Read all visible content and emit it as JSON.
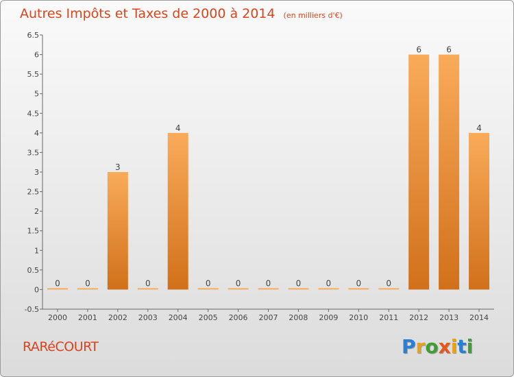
{
  "header": {
    "title": "Autres Impôts et Taxes de 2000 à 2014",
    "unit": "(en milliers d'€)"
  },
  "footer": {
    "place": "RARéCOURT",
    "logo_letters": [
      "P",
      "r",
      "o",
      "x",
      "i",
      "t",
      "i"
    ],
    "logo_colors": [
      "#2a7fd4",
      "#e8a21a",
      "#3f9e36",
      "#e8561a",
      "#e8a21a",
      "#2a7fd4",
      "#3f9e36"
    ]
  },
  "colors": {
    "bar_light": "#f9ab5a",
    "bar_dark": "#d1701a",
    "title": "#d9441c",
    "axis": "#666666"
  },
  "chart_data": {
    "type": "bar",
    "title": "Autres Impôts et Taxes de 2000 à 2014",
    "subtitle": "(en milliers d'€)",
    "categories": [
      "2000",
      "2001",
      "2002",
      "2003",
      "2004",
      "2005",
      "2006",
      "2007",
      "2008",
      "2009",
      "2010",
      "2011",
      "2012",
      "2013",
      "2014"
    ],
    "values": [
      0,
      0,
      3,
      0,
      4,
      0,
      0,
      0,
      0,
      0,
      0,
      0,
      6,
      6,
      4
    ],
    "data_labels": [
      "0",
      "0",
      "3",
      "0",
      "4",
      "0",
      "0",
      "0",
      "0",
      "0",
      "0",
      "0",
      "6",
      "6",
      "4"
    ],
    "yticks": [
      "-0.5",
      "0",
      "0.5",
      "1",
      "1.5",
      "2",
      "2.5",
      "3",
      "3.5",
      "4",
      "4.5",
      "5",
      "5.5",
      "6",
      "6.5"
    ],
    "ytick_values": [
      -0.5,
      0,
      0.5,
      1,
      1.5,
      2,
      2.5,
      3,
      3.5,
      4,
      4.5,
      5,
      5.5,
      6,
      6.5
    ],
    "ylim": [
      -0.5,
      6.5
    ],
    "xlabel": "",
    "ylabel": "",
    "grid": false
  }
}
